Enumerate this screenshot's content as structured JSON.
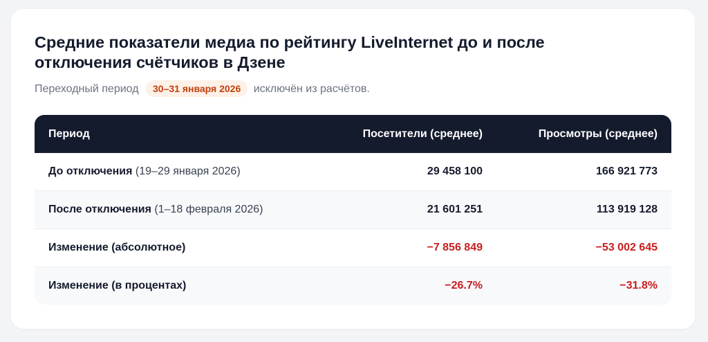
{
  "title": "Средние показатели медиа по рейтингу LiveInternet до и после отключения счётчиков в Дзене",
  "subtitle": {
    "prefix": "Переходный период",
    "badge": "30–31 января 2026",
    "suffix": "исключён из расчётов."
  },
  "table": {
    "headers": [
      "Период",
      "Посетители (среднее)",
      "Просмотры (среднее)"
    ],
    "rows": [
      {
        "label": "До отключения",
        "note": "(19–29 января 2026)",
        "visitors": "29 458 100",
        "views": "166 921 773"
      },
      {
        "label": "После отключения",
        "note": "(1–18 февраля 2026)",
        "visitors": "21 601 251",
        "views": "113 919 128"
      },
      {
        "label": "Изменение (абсолютное)",
        "note": "",
        "visitors": "−7 856 849",
        "views": "−53 002 645"
      },
      {
        "label": "Изменение (в процентах)",
        "note": "",
        "visitors": "−26.7%",
        "views": "−31.8%"
      }
    ]
  },
  "colors": {
    "header_bg": "#141b2d",
    "negative": "#c81e1e",
    "badge_text": "#c2410c",
    "badge_bg": "#fdf1e8"
  }
}
